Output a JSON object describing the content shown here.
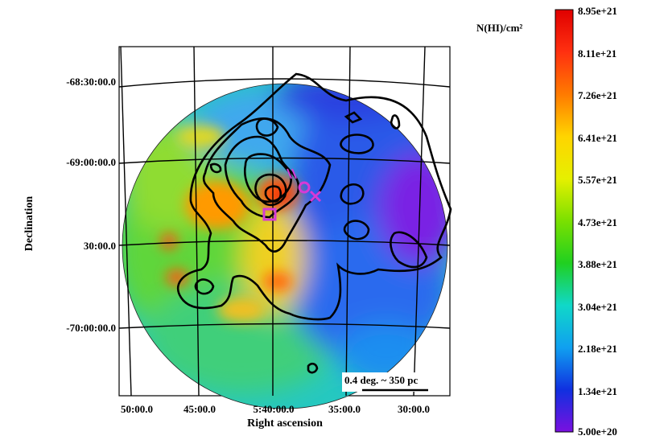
{
  "map": {
    "x_axis_title": "Right ascension",
    "y_axis_title": "Declination",
    "ra_ticks": [
      "50:00.0",
      "45:00.0",
      "5:40:00.0",
      "35:00.0",
      "30:00.0"
    ],
    "dec_ticks": [
      "-68:30:00.0",
      "-69:00:00.0",
      "30:00.0",
      "-70:00:00.0"
    ],
    "scale_bar_label": "0.4 deg. ~ 350 pc",
    "colors": {
      "contour": "#000000",
      "markers": "#d63ad6",
      "grid": "#000000"
    }
  },
  "colorbar": {
    "unit_label": "N(HI)/cm²",
    "ticks": [
      "8.95e+21",
      "8.11e+21",
      "7.26e+21",
      "6.41e+21",
      "5.57e+21",
      "4.73e+21",
      "3.88e+21",
      "3.04e+21",
      "2.18e+21",
      "1.34e+21",
      "5.00e+20"
    ],
    "stops": [
      "#e00000",
      "#ff3010",
      "#ff7a00",
      "#ffd400",
      "#e6f000",
      "#7be000",
      "#20d020",
      "#10d8c8",
      "#10a0f0",
      "#1030e0",
      "#7a10e0"
    ]
  }
}
